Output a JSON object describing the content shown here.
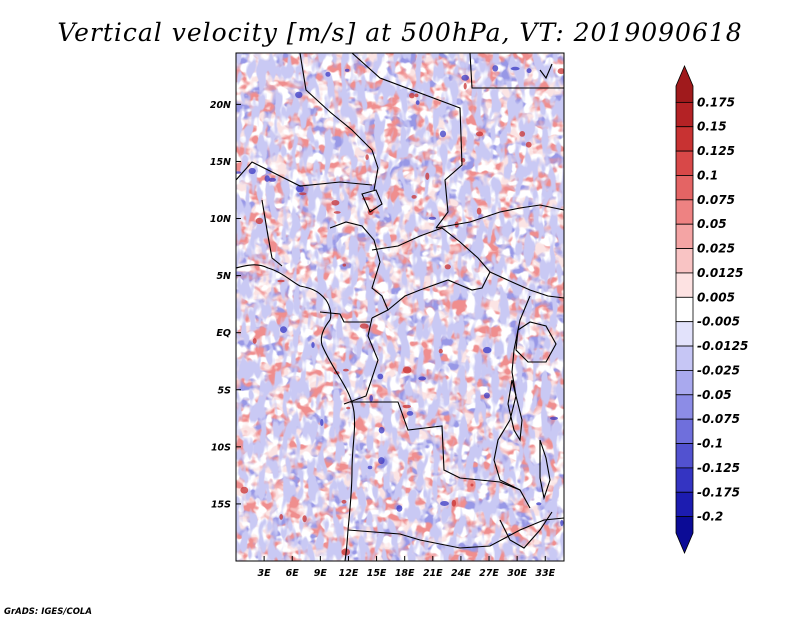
{
  "title": "Vertical velocity [m/s] at 500hPa, VT: 2019090618",
  "credit": "GrADS: IGES/COLA",
  "lon_ticks": [
    "3E",
    "6E",
    "9E",
    "12E",
    "15E",
    "18E",
    "21E",
    "24E",
    "27E",
    "30E",
    "33E"
  ],
  "lat_ticks": [
    "20N",
    "15N",
    "10N",
    "5N",
    "EQ",
    "5S",
    "10S",
    "15S"
  ],
  "map_extent": {
    "lon": [
      0,
      35
    ],
    "lat": [
      -20,
      24.5
    ]
  },
  "colorbar": {
    "labels": [
      "0.175",
      "0.15",
      "0.125",
      "0.1",
      "0.075",
      "0.05",
      "0.025",
      "0.0125",
      "0.005",
      "-0.005",
      "-0.0125",
      "-0.025",
      "-0.05",
      "-0.075",
      "-0.1",
      "-0.125",
      "-0.175",
      "-0.2"
    ],
    "colors": [
      "#a01a1c",
      "#b42225",
      "#c83232",
      "#d84848",
      "#e46464",
      "#ee8282",
      "#f4a4a4",
      "#f9c4c4",
      "#fde2e2",
      "#ffffff",
      "#e2e2fb",
      "#c6c6f5",
      "#a9a9ee",
      "#8c8ce6",
      "#6f6fdc",
      "#5252d0",
      "#3434c2",
      "#1c1cb0",
      "#0b0b96"
    ]
  },
  "coastline_color": "#000000"
}
